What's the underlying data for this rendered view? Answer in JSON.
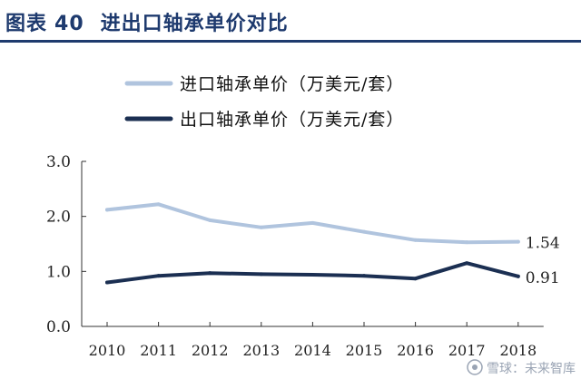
{
  "figure": {
    "label": "图表",
    "number": "40",
    "title": "进出口轴承单价对比"
  },
  "watermark": {
    "text": "雪球：未来智库"
  },
  "chart_data": {
    "type": "line",
    "categories": [
      "2010",
      "2011",
      "2012",
      "2013",
      "2014",
      "2015",
      "2016",
      "2017",
      "2018"
    ],
    "ylim": [
      0,
      3
    ],
    "yticks": [
      "0.0",
      "1.0",
      "2.0",
      "3.0"
    ],
    "grid": false,
    "legend_position": "top",
    "series": [
      {
        "name": "进口轴承单价（万美元/套）",
        "color": "#b0c4de",
        "values": [
          2.12,
          2.22,
          1.93,
          1.8,
          1.88,
          1.72,
          1.57,
          1.53,
          1.54
        ],
        "end_label": "1.54"
      },
      {
        "name": "出口轴承单价（万美元/套）",
        "color": "#1b2f52",
        "values": [
          0.8,
          0.92,
          0.97,
          0.95,
          0.94,
          0.92,
          0.87,
          1.15,
          0.91
        ],
        "end_label": "0.91"
      }
    ]
  }
}
